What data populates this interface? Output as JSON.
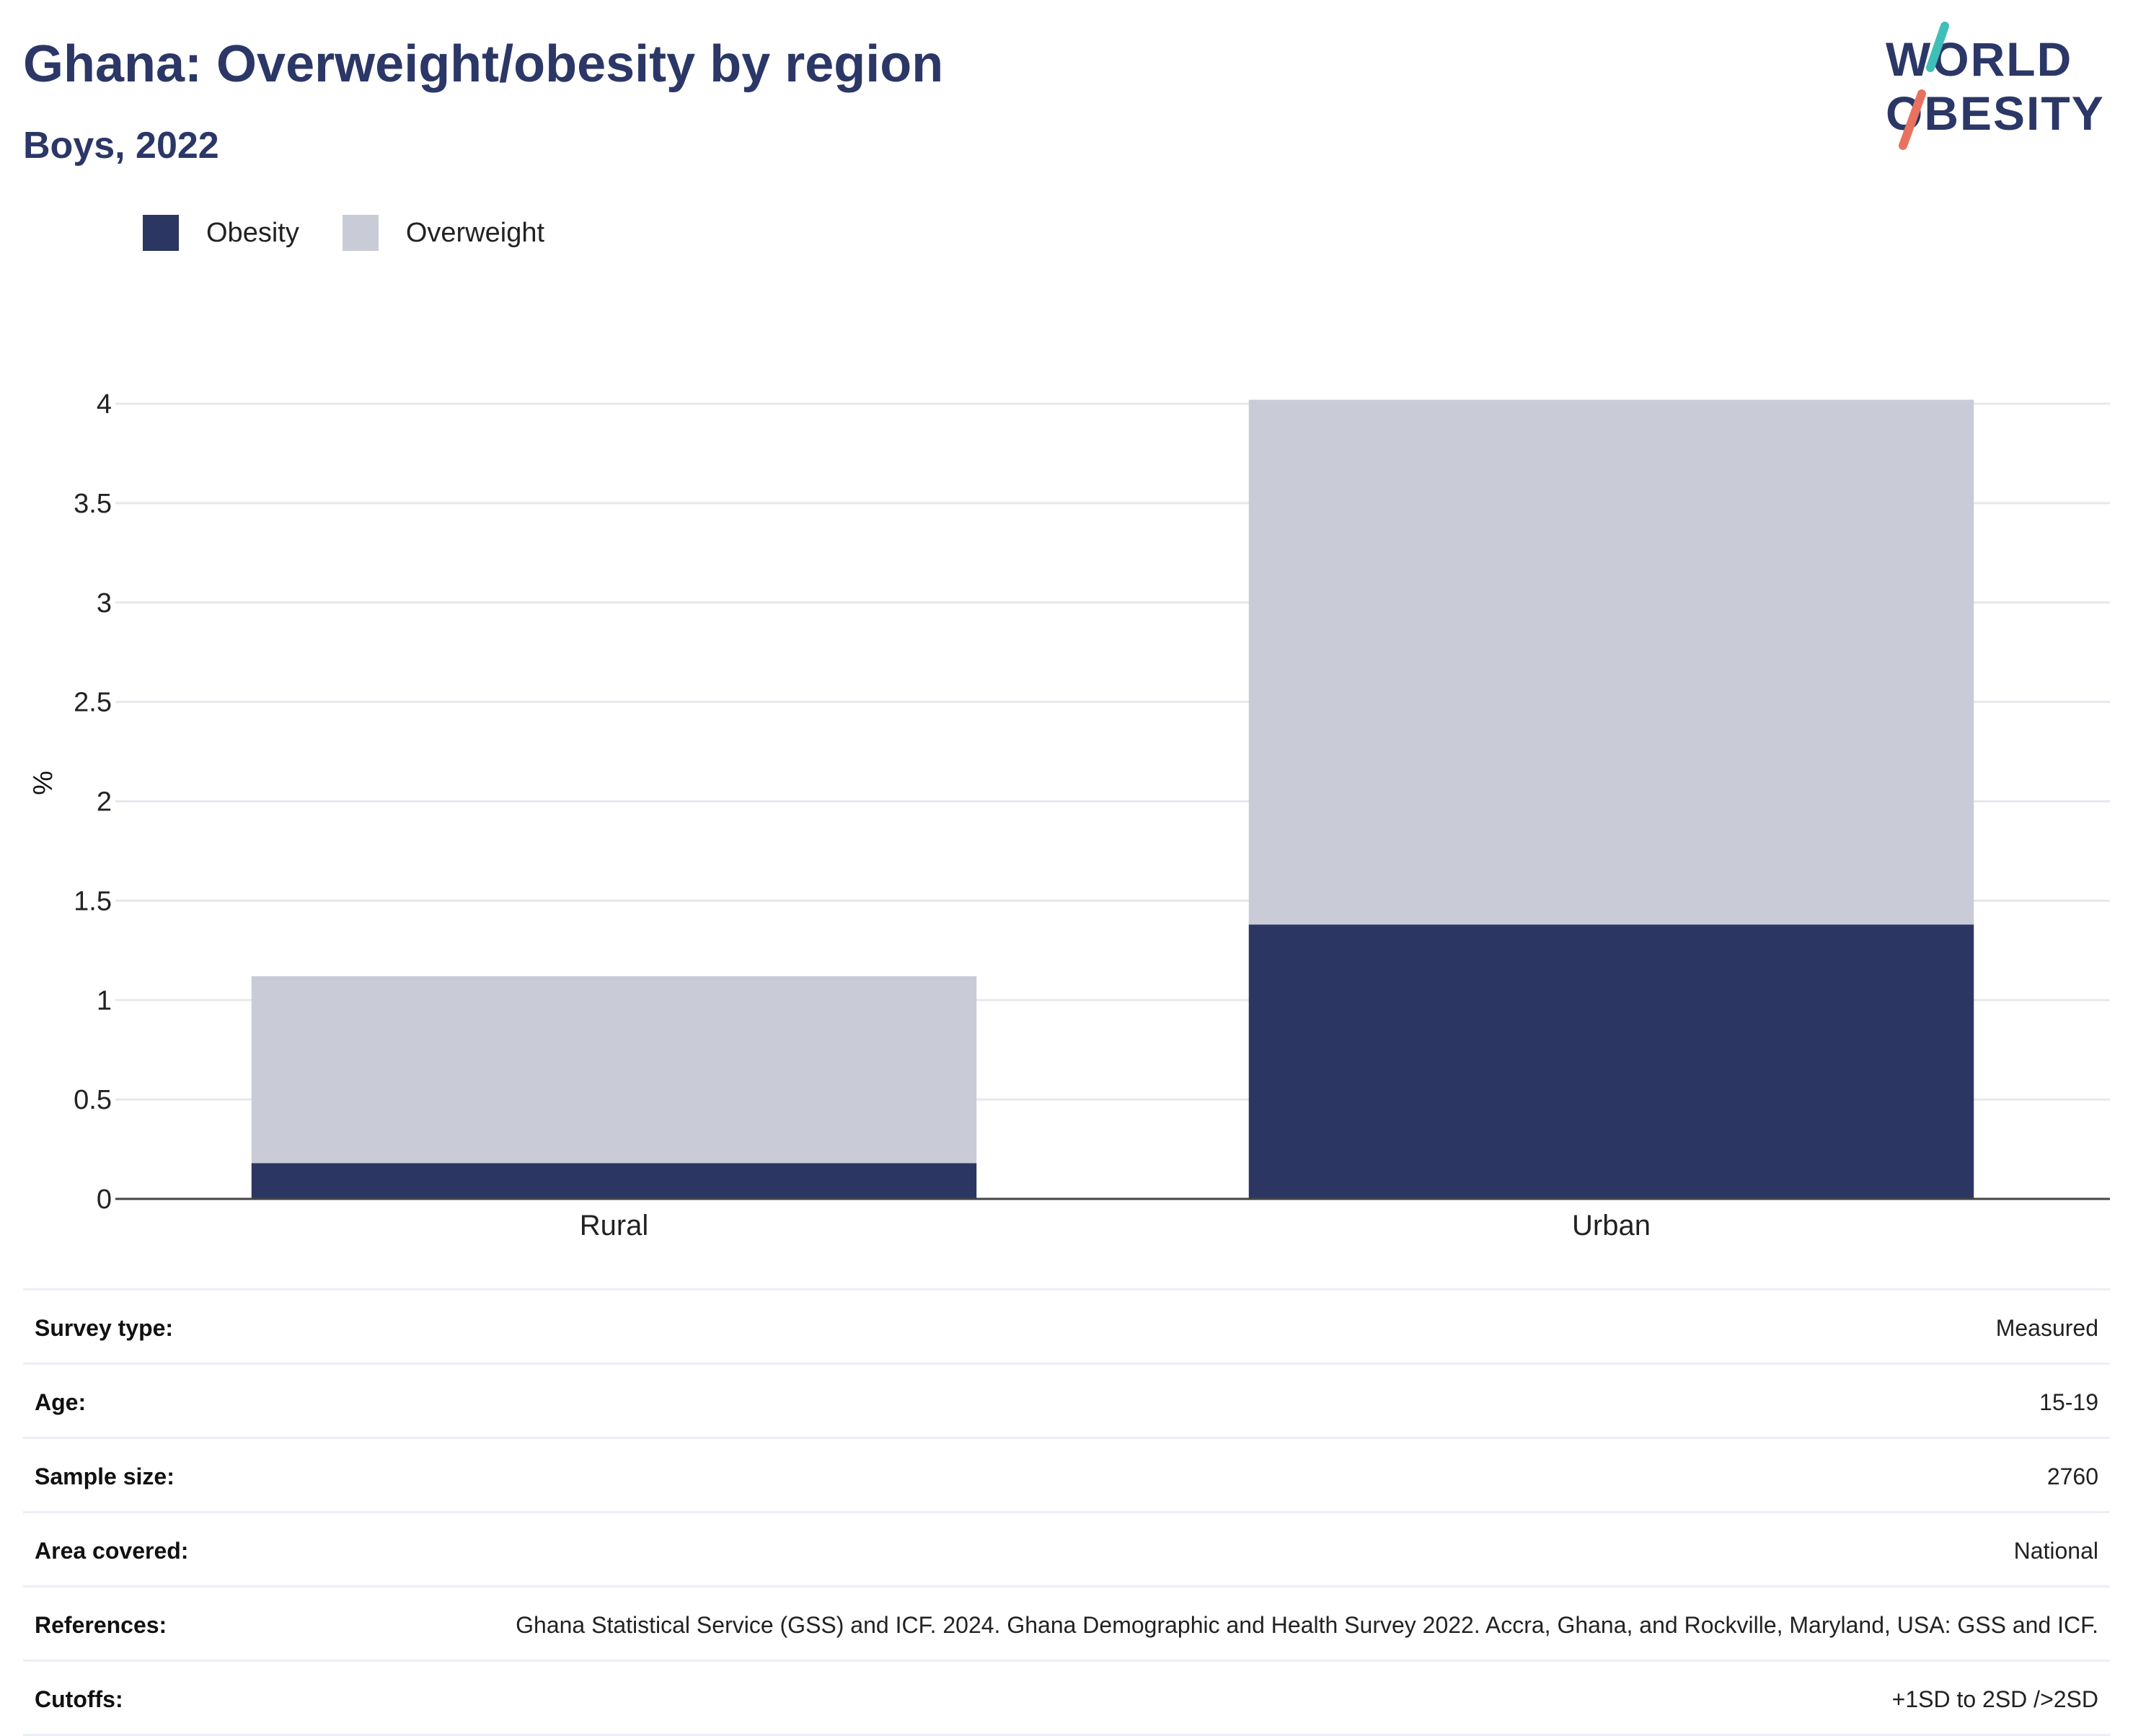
{
  "header": {
    "title": "Ghana: Overweight/obesity by region",
    "subtitle": "Boys, 2022"
  },
  "logo": {
    "line1": "WORLD",
    "line2": "OBESITY",
    "colors": {
      "text": "#2b3766",
      "slash_top": "#3fbfb8",
      "slash_bottom": "#e8725f"
    }
  },
  "legend": [
    {
      "label": "Obesity",
      "color": "#2b3663"
    },
    {
      "label": "Overweight",
      "color": "#c9cbd6"
    }
  ],
  "chart_data": {
    "type": "bar",
    "stacked": true,
    "categories": [
      "Rural",
      "Urban"
    ],
    "series": [
      {
        "name": "Obesity",
        "values": [
          0.18,
          1.38
        ],
        "color": "#2b3663"
      },
      {
        "name": "Overweight",
        "values": [
          0.94,
          2.64
        ],
        "color": "#c9cbd6"
      }
    ],
    "ylabel": "%",
    "ylim": [
      0,
      4
    ],
    "yticks": [
      0,
      0.5,
      1,
      1.5,
      2,
      2.5,
      3,
      3.5,
      4
    ],
    "ytick_labels": [
      "0",
      "0.5",
      "1",
      "1.5",
      "2",
      "2.5",
      "3",
      "3.5",
      "4"
    ],
    "grid": true,
    "legend_position": "top-left"
  },
  "info": [
    {
      "label": "Survey type:",
      "value": "Measured"
    },
    {
      "label": "Age:",
      "value": "15-19"
    },
    {
      "label": "Sample size:",
      "value": "2760"
    },
    {
      "label": "Area covered:",
      "value": "National"
    },
    {
      "label": "References:",
      "value": "Ghana Statistical Service (GSS) and ICF. 2024. Ghana Demographic and Health Survey 2022. Accra, Ghana, and Rockville, Maryland, USA: GSS and ICF."
    },
    {
      "label": "Cutoffs:",
      "value": "+1SD to 2SD />2SD"
    }
  ]
}
